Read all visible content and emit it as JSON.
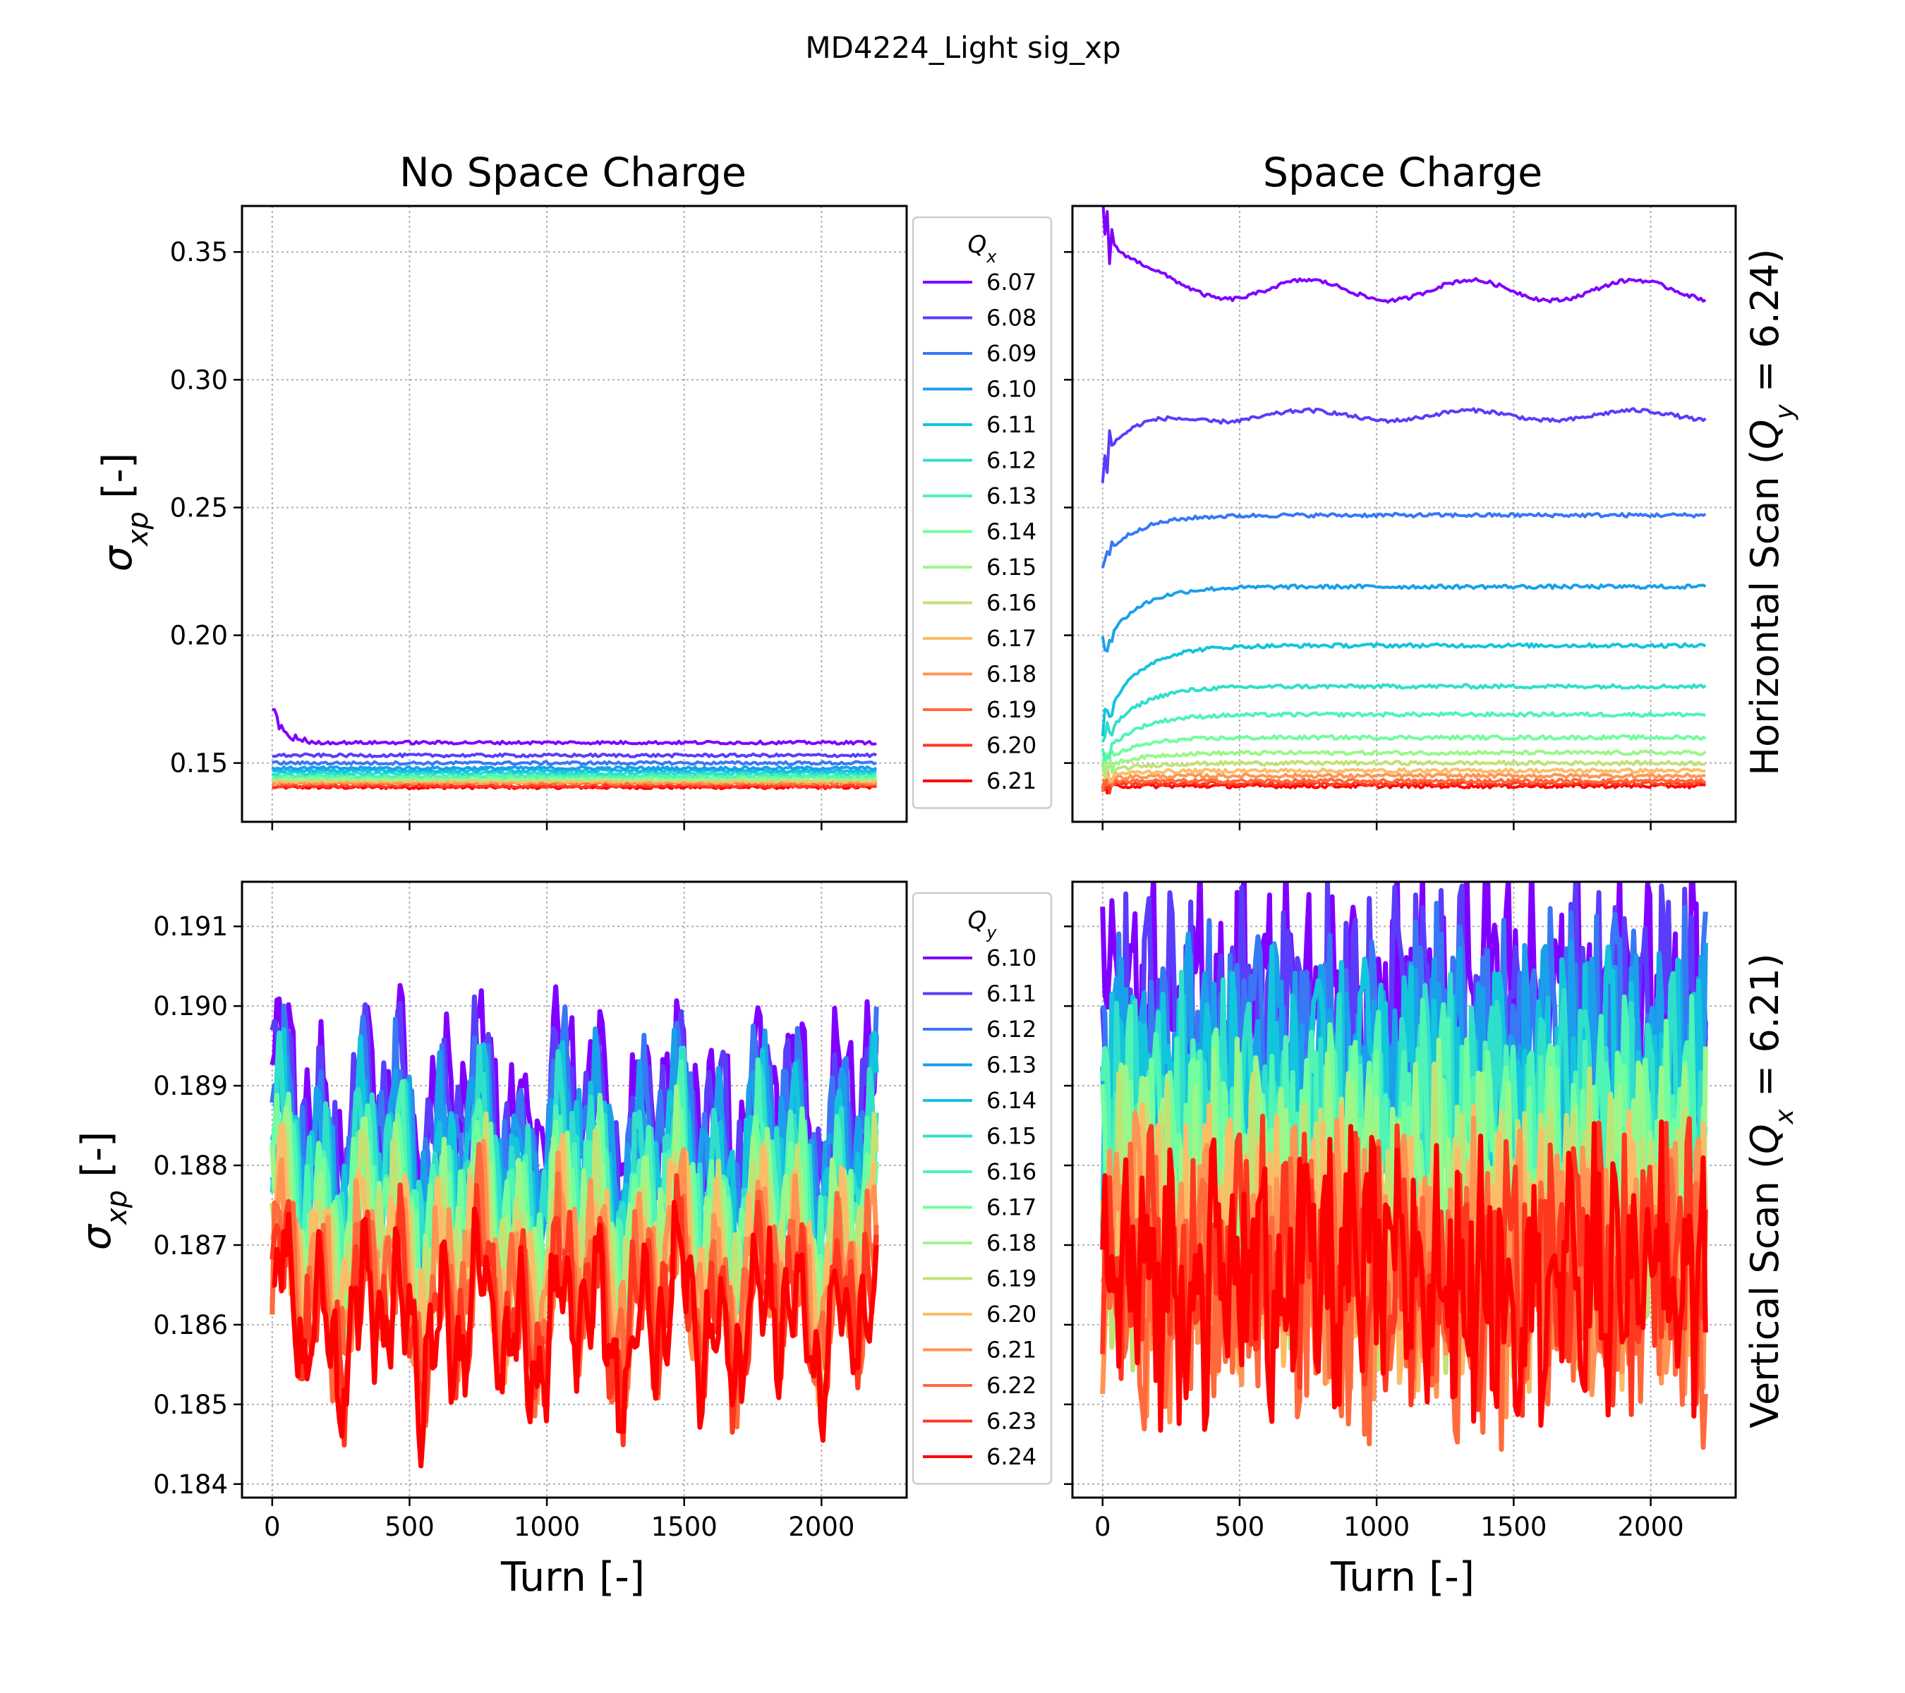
{
  "figure": {
    "title": "MD4224_Light sig_xp",
    "col_titles": [
      "No Space Charge",
      "Space Charge"
    ],
    "row_titles": [
      "Horizontal Scan (Q_y = 6.24)",
      "Vertical Scan (Q_x = 6.21)"
    ],
    "x_label": "Turn [-]",
    "y_label": "σ_xp [-]"
  },
  "chart_data": [
    {
      "type": "line",
      "panel": "top-left",
      "title": "No Space Charge",
      "xlabel": "",
      "ylabel": "σ_xp [-]",
      "xlim": [
        -110,
        2310
      ],
      "ylim": [
        0.127,
        0.368
      ],
      "yticks": [
        "0.15",
        "0.20",
        "0.25",
        "0.30",
        "0.35"
      ],
      "xticks": [],
      "grid": true,
      "x_range": [
        0,
        2200
      ],
      "legend": {
        "title": "Q_x",
        "placement": "outside-right",
        "entries": [
          "6.07",
          "6.08",
          "6.09",
          "6.10",
          "6.11",
          "6.12",
          "6.13",
          "6.14",
          "6.15",
          "6.16",
          "6.17",
          "6.18",
          "6.19",
          "6.20",
          "6.21"
        ]
      },
      "series": [
        {
          "name": "6.07",
          "color": "#8000ff",
          "values": [
            0.158
          ],
          "note_start": 0.172
        },
        {
          "name": "6.08",
          "color": "#5a3dfb",
          "values": [
            0.153
          ]
        },
        {
          "name": "6.09",
          "color": "#3878f4",
          "values": [
            0.15
          ]
        },
        {
          "name": "6.10",
          "color": "#1aa0eb",
          "values": [
            0.148
          ]
        },
        {
          "name": "6.11",
          "color": "#13c4dd",
          "values": [
            0.147
          ]
        },
        {
          "name": "6.12",
          "color": "#30dfcb",
          "values": [
            0.146
          ]
        },
        {
          "name": "6.13",
          "color": "#4ff4b6",
          "values": [
            0.145
          ]
        },
        {
          "name": "6.14",
          "color": "#72fd9f",
          "values": [
            0.1445
          ]
        },
        {
          "name": "6.15",
          "color": "#9bf789",
          "values": [
            0.144
          ]
        },
        {
          "name": "6.16",
          "color": "#c2e276",
          "values": [
            0.1435
          ]
        },
        {
          "name": "6.17",
          "color": "#fbbd67",
          "values": [
            0.143
          ]
        },
        {
          "name": "6.18",
          "color": "#ff9453",
          "values": [
            0.1425
          ]
        },
        {
          "name": "6.19",
          "color": "#ff6a3c",
          "values": [
            0.142
          ]
        },
        {
          "name": "6.20",
          "color": "#ff3820",
          "values": [
            0.141
          ]
        },
        {
          "name": "6.21",
          "color": "#ff0000",
          "values": [
            0.1405
          ]
        }
      ]
    },
    {
      "type": "line",
      "panel": "top-right",
      "title": "Space Charge",
      "xlabel": "",
      "ylabel": "",
      "xlim": [
        -110,
        2310
      ],
      "ylim": [
        0.127,
        0.368
      ],
      "yticks": [],
      "xticks": [],
      "grid": true,
      "x_range": [
        0,
        2200
      ],
      "series": [
        {
          "name": "6.07",
          "color": "#8000ff",
          "start": 0.358,
          "values": [
            0.335
          ],
          "oscillation": 0.004
        },
        {
          "name": "6.08",
          "color": "#5a3dfb",
          "start": 0.27,
          "values": [
            0.286
          ],
          "oscillation": 0.002
        },
        {
          "name": "6.09",
          "color": "#3878f4",
          "start": 0.23,
          "values": [
            0.247
          ]
        },
        {
          "name": "6.10",
          "color": "#1aa0eb",
          "start": 0.195,
          "values": [
            0.219
          ]
        },
        {
          "name": "6.11",
          "color": "#13c4dd",
          "start": 0.165,
          "values": [
            0.196
          ]
        },
        {
          "name": "6.12",
          "color": "#30dfcb",
          "start": 0.158,
          "values": [
            0.18
          ]
        },
        {
          "name": "6.13",
          "color": "#4ff4b6",
          "start": 0.153,
          "values": [
            0.169
          ]
        },
        {
          "name": "6.14",
          "color": "#72fd9f",
          "start": 0.15,
          "values": [
            0.16
          ]
        },
        {
          "name": "6.15",
          "color": "#9bf789",
          "start": 0.148,
          "values": [
            0.154
          ]
        },
        {
          "name": "6.16",
          "color": "#c2e276",
          "start": 0.146,
          "values": [
            0.15
          ]
        },
        {
          "name": "6.17",
          "color": "#fbbd67",
          "start": 0.145,
          "values": [
            0.147
          ]
        },
        {
          "name": "6.18",
          "color": "#ff9453",
          "start": 0.144,
          "values": [
            0.145
          ]
        },
        {
          "name": "6.19",
          "color": "#ff6a3c",
          "start": 0.143,
          "values": [
            0.143
          ]
        },
        {
          "name": "6.20",
          "color": "#ff3820",
          "start": 0.142,
          "values": [
            0.142
          ]
        },
        {
          "name": "6.21",
          "color": "#ff0000",
          "start": 0.141,
          "values": [
            0.141
          ]
        }
      ]
    },
    {
      "type": "line",
      "panel": "bottom-left",
      "title": "",
      "xlabel": "Turn [-]",
      "ylabel": "σ_xp [-]",
      "xlim": [
        -110,
        2310
      ],
      "ylim": [
        0.18383,
        0.19156
      ],
      "yticks": [
        "0.184",
        "0.185",
        "0.186",
        "0.187",
        "0.188",
        "0.189",
        "0.190",
        "0.191"
      ],
      "xticks": [
        "0",
        "500",
        "1000",
        "1500",
        "2000"
      ],
      "grid": true,
      "x_range": [
        0,
        2200
      ],
      "legend": {
        "title": "Q_y",
        "placement": "outside-right",
        "entries": [
          "6.10",
          "6.11",
          "6.12",
          "6.13",
          "6.14",
          "6.15",
          "6.16",
          "6.17",
          "6.18",
          "6.19",
          "6.20",
          "6.21",
          "6.22",
          "6.23",
          "6.24"
        ]
      },
      "series": [
        {
          "name": "6.10",
          "color": "#8000ff",
          "values": [
            0.1888
          ]
        },
        {
          "name": "6.11",
          "color": "#5a3dfb",
          "values": [
            0.1886
          ]
        },
        {
          "name": "6.12",
          "color": "#3878f4",
          "values": [
            0.1884
          ]
        },
        {
          "name": "6.13",
          "color": "#1aa0eb",
          "values": [
            0.1882
          ]
        },
        {
          "name": "6.14",
          "color": "#13c4dd",
          "values": [
            0.188
          ]
        },
        {
          "name": "6.15",
          "color": "#30dfcb",
          "values": [
            0.1878
          ]
        },
        {
          "name": "6.16",
          "color": "#4ff4b6",
          "values": [
            0.1876
          ]
        },
        {
          "name": "6.17",
          "color": "#72fd9f",
          "values": [
            0.1874
          ]
        },
        {
          "name": "6.18",
          "color": "#9bf789",
          "values": [
            0.1872
          ]
        },
        {
          "name": "6.19",
          "color": "#c2e276",
          "values": [
            0.187
          ]
        },
        {
          "name": "6.20",
          "color": "#fbbd67",
          "values": [
            0.1868
          ]
        },
        {
          "name": "6.21",
          "color": "#ff9453",
          "values": [
            0.1866
          ]
        },
        {
          "name": "6.22",
          "color": "#ff6a3c",
          "values": [
            0.1864
          ]
        },
        {
          "name": "6.23",
          "color": "#ff3820",
          "values": [
            0.1862
          ]
        },
        {
          "name": "6.24",
          "color": "#ff0000",
          "values": [
            0.186
          ]
        }
      ]
    },
    {
      "type": "line",
      "panel": "bottom-right",
      "title": "",
      "xlabel": "Turn [-]",
      "ylabel": "",
      "xlim": [
        -110,
        2310
      ],
      "ylim": [
        0.18383,
        0.19156
      ],
      "yticks": [],
      "xticks": [
        "0",
        "500",
        "1000",
        "1500",
        "2000"
      ],
      "grid": true,
      "x_range": [
        0,
        2200
      ],
      "series": [
        {
          "name": "6.10",
          "color": "#8000ff",
          "values": [
            0.19
          ]
        },
        {
          "name": "6.11",
          "color": "#5a3dfb",
          "values": [
            0.1897
          ]
        },
        {
          "name": "6.12",
          "color": "#3878f4",
          "values": [
            0.1894
          ]
        },
        {
          "name": "6.13",
          "color": "#1aa0eb",
          "values": [
            0.1891
          ]
        },
        {
          "name": "6.14",
          "color": "#13c4dd",
          "values": [
            0.1888
          ]
        },
        {
          "name": "6.15",
          "color": "#30dfcb",
          "values": [
            0.1885
          ]
        },
        {
          "name": "6.16",
          "color": "#4ff4b6",
          "values": [
            0.1882
          ]
        },
        {
          "name": "6.17",
          "color": "#72fd9f",
          "values": [
            0.1879
          ]
        },
        {
          "name": "6.18",
          "color": "#9bf789",
          "values": [
            0.1876
          ]
        },
        {
          "name": "6.19",
          "color": "#c2e276",
          "values": [
            0.1873
          ]
        },
        {
          "name": "6.20",
          "color": "#fbbd67",
          "values": [
            0.187
          ]
        },
        {
          "name": "6.21",
          "color": "#ff9453",
          "values": [
            0.1867
          ]
        },
        {
          "name": "6.22",
          "color": "#ff6a3c",
          "values": [
            0.1864
          ]
        },
        {
          "name": "6.23",
          "color": "#ff3820",
          "values": [
            0.1867
          ]
        },
        {
          "name": "6.24",
          "color": "#ff0000",
          "values": [
            0.1866
          ]
        }
      ]
    }
  ]
}
